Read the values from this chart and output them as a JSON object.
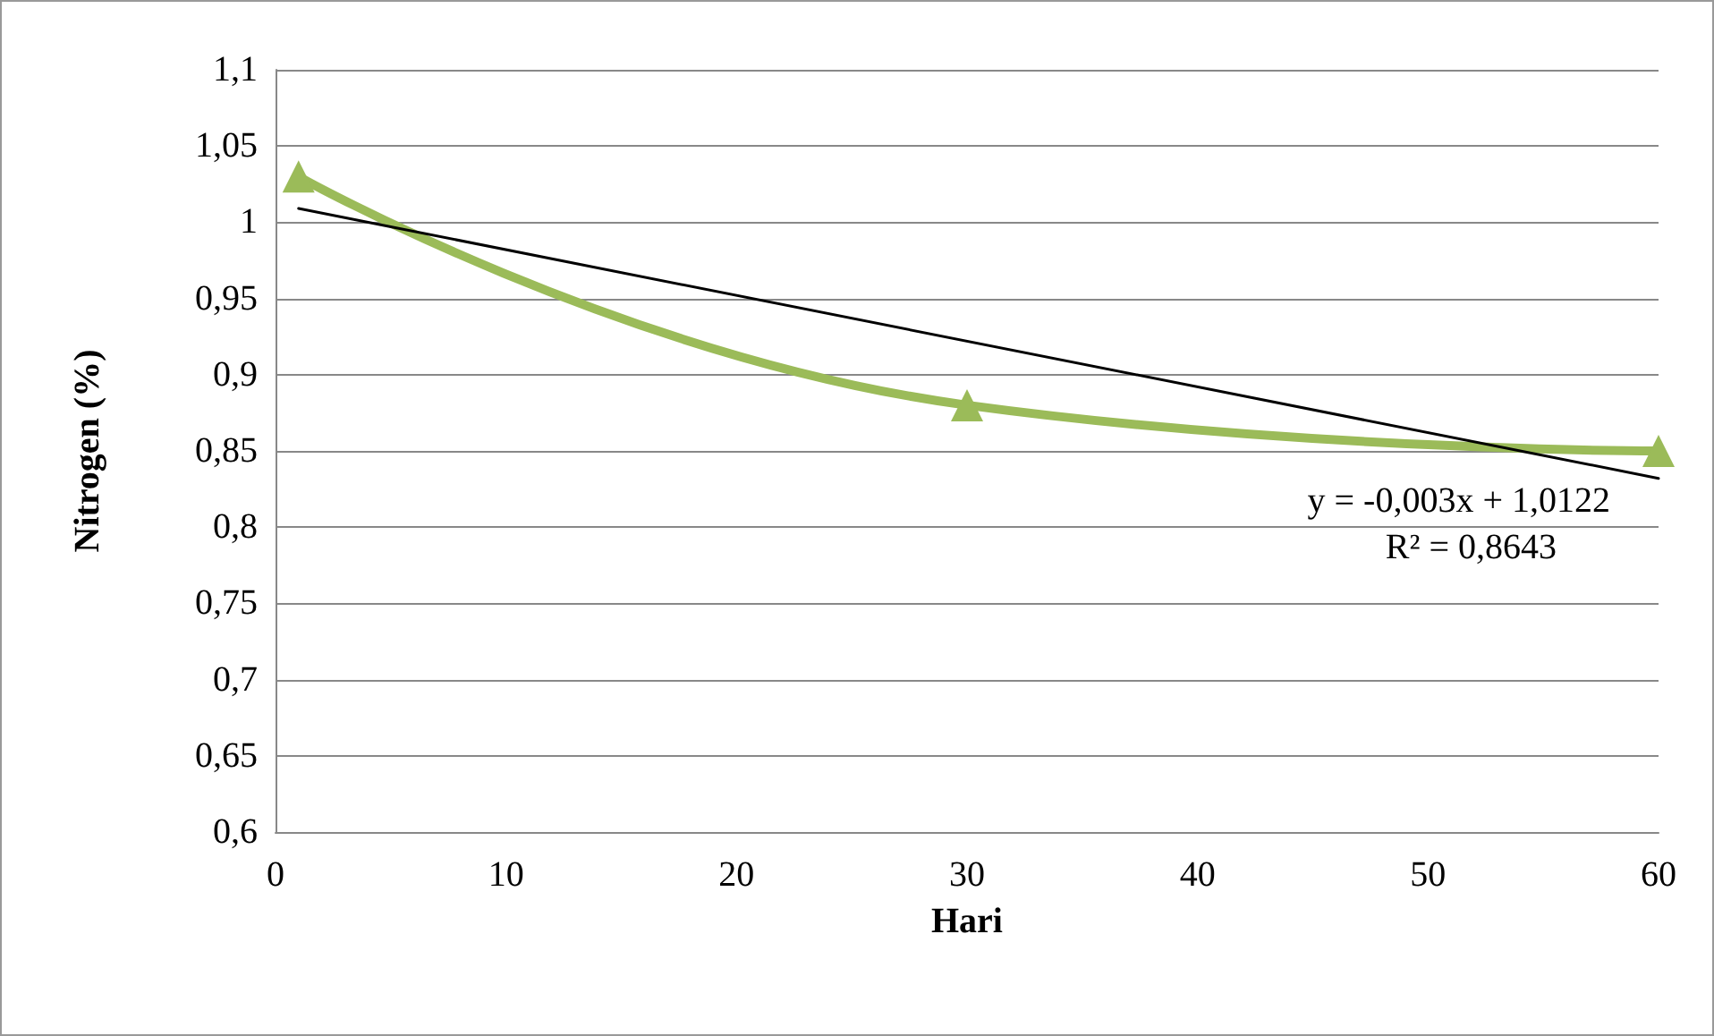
{
  "chart_data": {
    "type": "line",
    "xlabel": "Hari",
    "ylabel": "Nitrogen (%)",
    "xlim": [
      0,
      60
    ],
    "xticks": [
      0,
      10,
      20,
      30,
      40,
      50,
      60
    ],
    "ylim": [
      0.6,
      1.1
    ],
    "yticks": [
      {
        "value": 0.6,
        "label": "0,6"
      },
      {
        "value": 0.65,
        "label": "0,65"
      },
      {
        "value": 0.7,
        "label": "0,7"
      },
      {
        "value": 0.75,
        "label": "0,75"
      },
      {
        "value": 0.8,
        "label": "0,8"
      },
      {
        "value": 0.85,
        "label": "0,85"
      },
      {
        "value": 0.9,
        "label": "0,9"
      },
      {
        "value": 0.95,
        "label": "0,95"
      },
      {
        "value": 1,
        "label": "1"
      },
      {
        "value": 1.05,
        "label": "1,05"
      },
      {
        "value": 1.1,
        "label": "1,1"
      }
    ],
    "grid": "y",
    "line_style": "solid",
    "series": [
      {
        "color": "#9bbb59",
        "x": [
          1,
          30,
          60
        ],
        "values": [
          1.03,
          0.88,
          0.85
        ],
        "marker": "triangle"
      },
      {
        "color": "#000000",
        "x": [
          1,
          60
        ],
        "values": [
          1.009,
          0.832
        ],
        "marker": "none"
      }
    ],
    "annotations": [
      "y = -0,003x + 1,0122",
      "R² = 0,8643"
    ]
  }
}
